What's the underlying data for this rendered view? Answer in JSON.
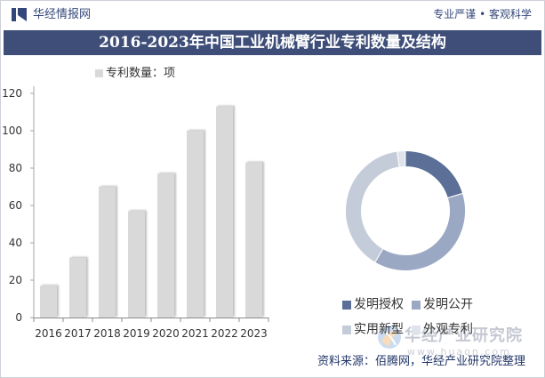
{
  "header": {
    "logo_icon": "huajing-logo-icon",
    "site_name": "华经情报网",
    "slogan": "专业严谨 • 客观科学"
  },
  "title": "2016-2023年中国工业机械臂行业专利数量及结构",
  "colors": {
    "brand_text": "#34477a",
    "title_bar": "#3e4e79",
    "bar": "#d9d9d9",
    "bar_shadow": "#b5b5b5",
    "axis": "#a6a6a6",
    "source_text": "#203568"
  },
  "chart_data": [
    {
      "type": "bar",
      "categories": [
        "2016",
        "2017",
        "2018",
        "2019",
        "2020",
        "2021",
        "2022",
        "2023"
      ],
      "series": [
        {
          "name": "专利数量：项",
          "values": [
            17,
            32,
            70,
            57,
            77,
            100,
            113,
            83
          ]
        }
      ],
      "ylim": [
        0,
        120
      ],
      "yticks": [
        0,
        20,
        40,
        60,
        80,
        100,
        120
      ],
      "grid": false,
      "legend": "top"
    },
    {
      "type": "pie",
      "variant": "donut",
      "labels": [
        "发明授权",
        "发明公开",
        "实用新型",
        "外观专利"
      ],
      "values": [
        20.3,
        38.2,
        39.3,
        2.2
      ],
      "colors": [
        "#5b6f97",
        "#9ba8c3",
        "#c4cbd9",
        "#dfe3eb"
      ],
      "legend": "bottom"
    }
  ],
  "watermark": {
    "name": "华经产业研究院",
    "url": "www.huaon.com"
  },
  "source": "资料来源：佰腾网，华经产业研究院整理"
}
